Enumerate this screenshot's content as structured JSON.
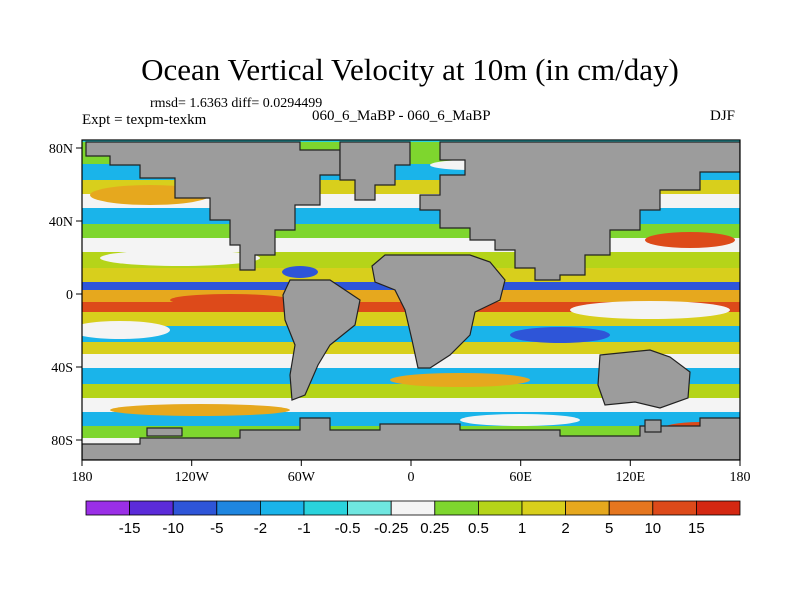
{
  "figure": {
    "title": "Ocean Vertical Velocity at 10m (in cm/day)",
    "stats": "rmsd= 1.6363 diff= 0.0294499",
    "left_label": "Expt = texpm-texkm",
    "center_label": "060_6_MaBP - 060_6_MaBP",
    "right_label": "DJF"
  },
  "axes": {
    "x_ticks": [
      "180",
      "120W",
      "60W",
      "0",
      "60E",
      "120E",
      "180"
    ],
    "y_ticks": [
      "80N",
      "40N",
      "0",
      "40S",
      "80S"
    ]
  },
  "colorbar": {
    "labels": [
      "-15",
      "-10",
      "-5",
      "-2",
      "-1",
      "-0.5",
      "-0.25",
      "0.25",
      "0.5",
      "1",
      "2",
      "5",
      "10",
      "15"
    ],
    "colors": [
      "#9a2fe6",
      "#5b2bd9",
      "#2e55d8",
      "#1f86e0",
      "#1ab4ea",
      "#2ad3dc",
      "#6fe6e0",
      "#f4f4f4",
      "#7ed62e",
      "#b5d419",
      "#d8cf1c",
      "#e6a81e",
      "#e5761f",
      "#dd4a1a",
      "#d42812"
    ]
  },
  "map": {
    "land_color": "#9c9c9c",
    "field_colors": {
      "strong_neg": "#2e55d8",
      "neg": "#1ab4ea",
      "weak_neg": "#2ad3dc",
      "near_zero": "#f4f4f4",
      "weak_pos": "#7ed62e",
      "pos": "#d8cf1c",
      "strong_pos": "#e6a81e",
      "very_pos": "#dd4a1a"
    }
  }
}
